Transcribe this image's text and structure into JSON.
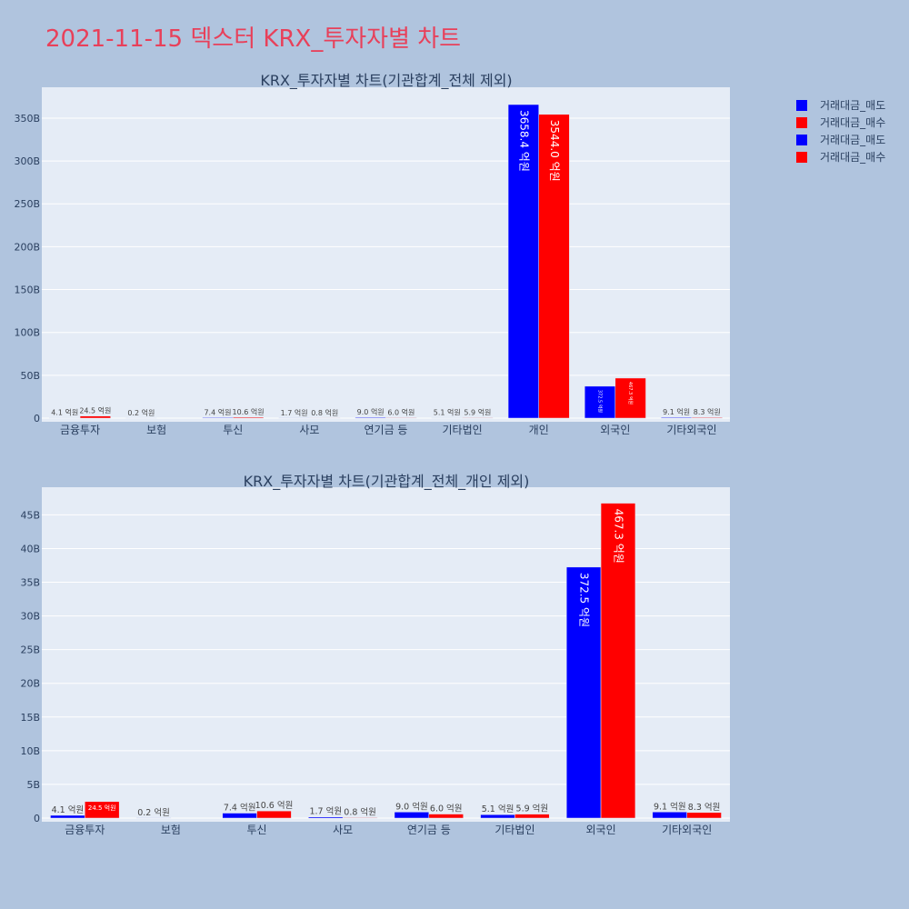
{
  "page": {
    "title": "2021-11-15 덱스터 KRX_투자자별 차트"
  },
  "legend": [
    {
      "label": "거래대금_매도",
      "color": "#0000ff"
    },
    {
      "label": "거래대금_매수",
      "color": "#ff0000"
    },
    {
      "label": "거래대금_매도",
      "color": "#0000ff"
    },
    {
      "label": "거래대금_매수",
      "color": "#ff0000"
    }
  ],
  "chart_data": [
    {
      "type": "bar",
      "title": "KRX_투자자별 차트(기관합계_전체 제외)",
      "categories": [
        "금융투자",
        "보험",
        "투신",
        "사모",
        "연기금 등",
        "기타법인",
        "개인",
        "외국인",
        "기타외국인"
      ],
      "series": [
        {
          "name": "거래대금_매도",
          "color": "#0000ff",
          "values": [
            0.41,
            0.02,
            0.74,
            0.17,
            0.9,
            0.51,
            365.84,
            37.25,
            0.91
          ],
          "labels": [
            "4.1 억원",
            "0.2 억원",
            "7.4 억원",
            "1.7 억원",
            "9.0 억원",
            "5.1 억원",
            "3658.4 억원",
            "372.5 억원",
            "9.1 억원"
          ]
        },
        {
          "name": "거래대금_매수",
          "color": "#ff0000",
          "values": [
            2.45,
            0,
            1.06,
            0.08,
            0.6,
            0.59,
            354.4,
            46.73,
            0.83
          ],
          "labels": [
            "24.5 억원",
            "",
            "10.6 억원",
            "0.8 억원",
            "6.0 억원",
            "5.9 억원",
            "3544.0 억원",
            "467.3 억원",
            "8.3 억원"
          ]
        }
      ],
      "yticks": [
        "0",
        "50B",
        "100B",
        "150B",
        "200B",
        "250B",
        "300B",
        "350B"
      ],
      "ylim": [
        0,
        386
      ]
    },
    {
      "type": "bar",
      "title": "KRX_투자자별 차트(기관합계_전체_개인 제외)",
      "categories": [
        "금융투자",
        "보험",
        "투신",
        "사모",
        "연기금 등",
        "기타법인",
        "외국인",
        "기타외국인"
      ],
      "series": [
        {
          "name": "거래대금_매도",
          "color": "#0000ff",
          "values": [
            0.41,
            0.02,
            0.74,
            0.17,
            0.9,
            0.51,
            37.25,
            0.91
          ],
          "labels": [
            "4.1 억원",
            "0.2 억원",
            "7.4 억원",
            "1.7 억원",
            "9.0 억원",
            "5.1 억원",
            "372.5 억원",
            "9.1 억원"
          ]
        },
        {
          "name": "거래대금_매수",
          "color": "#ff0000",
          "values": [
            2.45,
            0,
            1.06,
            0.08,
            0.6,
            0.59,
            46.73,
            0.83
          ],
          "labels": [
            "24.5 억원",
            "",
            "10.6 억원",
            "0.8 억원",
            "6.0 억원",
            "5.9 억원",
            "467.3 억원",
            "8.3 억원"
          ]
        }
      ],
      "yticks": [
        "0",
        "5B",
        "10B",
        "15B",
        "20B",
        "25B",
        "30B",
        "35B",
        "40B",
        "45B"
      ],
      "ylim": [
        0,
        49.1
      ]
    }
  ]
}
